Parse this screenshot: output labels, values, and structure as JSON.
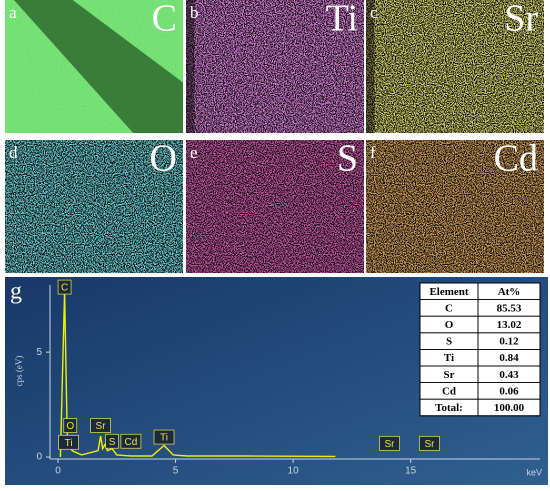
{
  "panels": [
    {
      "letter": "a",
      "element": "C",
      "color": "#3fd23f",
      "band": "dark"
    },
    {
      "letter": "b",
      "element": "Ti",
      "color": "#d040d0",
      "band": "bright"
    },
    {
      "letter": "c",
      "element": "Sr",
      "color": "#d8d030",
      "band": "bright"
    },
    {
      "letter": "d",
      "element": "O",
      "color": "#30c8d0",
      "band": "left"
    },
    {
      "letter": "e",
      "element": "S",
      "color": "#c02080",
      "band": "left"
    },
    {
      "letter": "f",
      "element": "Cd",
      "color": "#d07020",
      "band": "left"
    }
  ],
  "spectrum_letter": "g",
  "chart_data": {
    "type": "line",
    "ylabel": "cps (eV)",
    "xlabel": "keV",
    "color": "#f0f000",
    "x": [
      0.1,
      0.28,
      0.4,
      0.45,
      0.52,
      0.6,
      1.0,
      1.7,
      1.81,
      1.9,
      2.0,
      2.1,
      2.3,
      2.5,
      3.1,
      4.0,
      4.51,
      4.9,
      5.5,
      8,
      11.8
    ],
    "values": [
      0,
      7.9,
      0.5,
      0.6,
      0.6,
      0.3,
      0.1,
      0.3,
      1.0,
      0.4,
      0.6,
      0.3,
      0.4,
      0.1,
      0.05,
      0.05,
      0.55,
      0.1,
      0.05,
      0.05,
      0.03
    ],
    "xlim": [
      0,
      20.5
    ],
    "ylim": [
      0,
      8.2
    ],
    "xticks": [
      0,
      5,
      10,
      15
    ],
    "yticks": [
      0,
      5
    ],
    "annotations": [
      {
        "text": "C",
        "x": 0.28,
        "y": 8.1
      },
      {
        "text": "O",
        "x": 0.52,
        "y": 1.5
      },
      {
        "text": "Ti",
        "x": 0.45,
        "y": 0.7
      },
      {
        "text": "Sr",
        "x": 1.81,
        "y": 1.5
      },
      {
        "text": "S",
        "x": 2.3,
        "y": 0.75
      },
      {
        "text": "Cd",
        "x": 3.1,
        "y": 0.75
      },
      {
        "text": "Ti",
        "x": 4.51,
        "y": 0.95
      },
      {
        "text": "Sr",
        "x": 14.1,
        "y": 0.65
      },
      {
        "text": "Sr",
        "x": 15.8,
        "y": 0.65
      }
    ]
  },
  "table": {
    "header": [
      "Element",
      "At%"
    ],
    "rows": [
      [
        "C",
        "85.53"
      ],
      [
        "O",
        "13.02"
      ],
      [
        "S",
        "0.12"
      ],
      [
        "Ti",
        "0.84"
      ],
      [
        "Sr",
        "0.43"
      ],
      [
        "Cd",
        "0.06"
      ],
      [
        "Total:",
        "100.00"
      ]
    ]
  }
}
